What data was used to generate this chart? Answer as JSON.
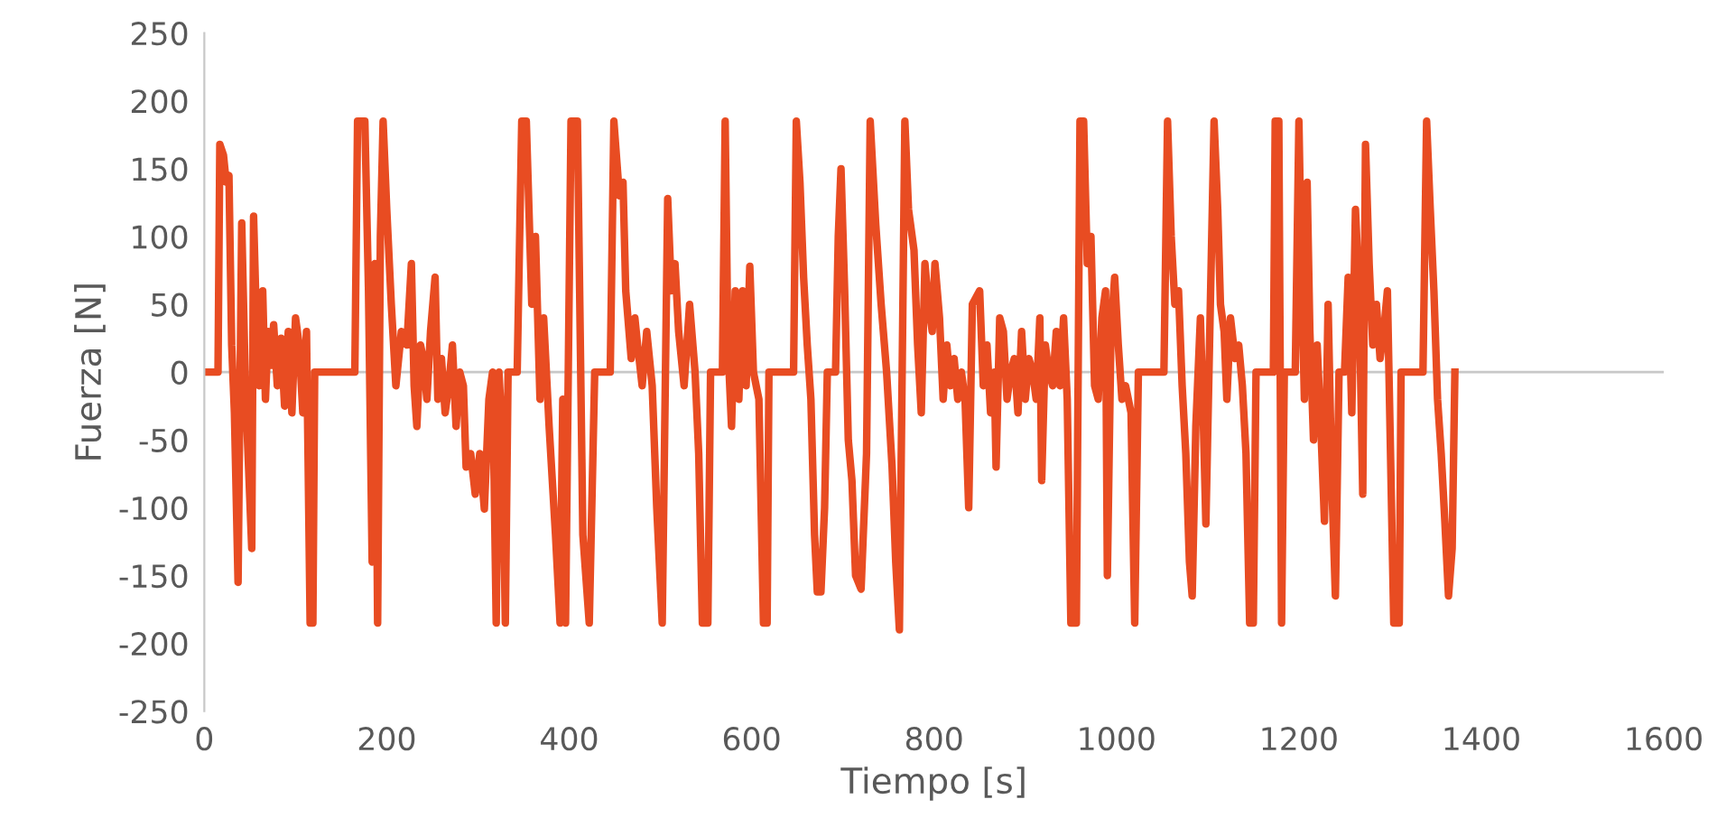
{
  "chart_data": {
    "type": "line",
    "xlabel": "Tiempo [s]",
    "ylabel": "Fuerza [N]",
    "xlim": [
      0,
      1600
    ],
    "xticks": [
      0,
      200,
      400,
      600,
      800,
      1000,
      1200,
      1400,
      1600
    ],
    "ylim": [
      -250,
      250
    ],
    "yticks": [
      -250,
      -200,
      -150,
      -100,
      -50,
      0,
      50,
      100,
      150,
      200,
      250
    ],
    "grid": false,
    "legend": false,
    "ref_lines": [
      {
        "axis": "y",
        "value": 0,
        "color": "#c8c8c8"
      }
    ],
    "marker": "none",
    "line_style": "solid",
    "series": [
      {
        "color": "#e84c22",
        "x": [
          0,
          15,
          17,
          21,
          24,
          27,
          30,
          33,
          37,
          41,
          45,
          52,
          54,
          57,
          60,
          63,
          64,
          67,
          70,
          73,
          76,
          80,
          84,
          88,
          92,
          96,
          100,
          104,
          108,
          112,
          116,
          119,
          121,
          165,
          168,
          174,
          176,
          180,
          184,
          187,
          190,
          193,
          196,
          200,
          205,
          210,
          216,
          222,
          227,
          230,
          233,
          237,
          240,
          244,
          248,
          253,
          256,
          260,
          264,
          268,
          272,
          276,
          280,
          284,
          287,
          292,
          297,
          302,
          307,
          312,
          316,
          320,
          323,
          327,
          330,
          333,
          343,
          348,
          353,
          359,
          363,
          368,
          372,
          378,
          385,
          390,
          393,
          396,
          399,
          402,
          409,
          415,
          422,
          428,
          445,
          449,
          455,
          459,
          462,
          468,
          472,
          475,
          480,
          485,
          491,
          496,
          502,
          508,
          512,
          516,
          520,
          526,
          532,
          538,
          542,
          546,
          552,
          555,
          568,
          571,
          574,
          578,
          582,
          586,
          590,
          594,
          598,
          602,
          608,
          613,
          617,
          619,
          646,
          649,
          653,
          657,
          661,
          665,
          669,
          672,
          676,
          680,
          683,
          692,
          695,
          698,
          702,
          706,
          710,
          714,
          720,
          726,
          730,
          736,
          742,
          748,
          754,
          758,
          762,
          768,
          772,
          778,
          782,
          786,
          790,
          794,
          798,
          801,
          806,
          810,
          814,
          818,
          822,
          826,
          830,
          834,
          838,
          842,
          846,
          850,
          854,
          858,
          862,
          866,
          868,
          872,
          876,
          880,
          884,
          888,
          892,
          896,
          900,
          904,
          908,
          912,
          916,
          918,
          922,
          926,
          930,
          934,
          938,
          942,
          946,
          950,
          956,
          960,
          964,
          968,
          972,
          976,
          980,
          984,
          988,
          990,
          994,
          998,
          1002,
          1006,
          1010,
          1016,
          1020,
          1024,
          1052,
          1056,
          1060,
          1064,
          1068,
          1072,
          1076,
          1080,
          1083,
          1087,
          1092,
          1095,
          1098,
          1102,
          1107,
          1111,
          1114,
          1118,
          1121,
          1125,
          1130,
          1134,
          1138,
          1142,
          1146,
          1150,
          1153,
          1172,
          1174,
          1178,
          1181,
          1184,
          1196,
          1200,
          1203,
          1206,
          1209,
          1212,
          1216,
          1220,
          1224,
          1228,
          1232,
          1236,
          1240,
          1244,
          1250,
          1254,
          1258,
          1262,
          1266,
          1270,
          1273,
          1277,
          1281,
          1285,
          1289,
          1293,
          1297,
          1301,
          1304,
          1310,
          1312,
          1336,
          1340,
          1344,
          1348,
          1352,
          1356,
          1360,
          1364,
          1368,
          1371
        ],
        "values": [
          0,
          0,
          168,
          160,
          140,
          145,
          20,
          -30,
          -155,
          110,
          -10,
          -130,
          115,
          40,
          -10,
          20,
          60,
          -20,
          30,
          5,
          35,
          -10,
          25,
          -25,
          30,
          -30,
          40,
          20,
          -30,
          30,
          -185,
          -185,
          0,
          0,
          185,
          185,
          185,
          60,
          -140,
          80,
          -185,
          100,
          185,
          120,
          50,
          -10,
          30,
          20,
          80,
          -10,
          -40,
          20,
          10,
          -20,
          30,
          70,
          -20,
          10,
          -30,
          -10,
          20,
          -40,
          0,
          -10,
          -70,
          -60,
          -90,
          -60,
          -101,
          -20,
          0,
          -185,
          0,
          -50,
          -185,
          0,
          0,
          185,
          185,
          50,
          100,
          -20,
          40,
          -40,
          -120,
          -185,
          -20,
          -185,
          0,
          185,
          185,
          -120,
          -185,
          0,
          0,
          185,
          130,
          140,
          60,
          10,
          40,
          20,
          -10,
          30,
          -10,
          -100,
          -185,
          128,
          60,
          80,
          30,
          -10,
          50,
          0,
          -60,
          -185,
          -185,
          0,
          0,
          185,
          20,
          -40,
          60,
          -20,
          60,
          -10,
          78,
          0,
          -20,
          -185,
          -185,
          0,
          0,
          185,
          140,
          70,
          20,
          -20,
          -120,
          -162,
          -162,
          -100,
          0,
          0,
          100,
          150,
          60,
          -50,
          -80,
          -150,
          -160,
          -60,
          185,
          110,
          50,
          0,
          -70,
          -140,
          -190,
          185,
          120,
          90,
          20,
          -30,
          80,
          50,
          30,
          80,
          40,
          -20,
          20,
          -10,
          10,
          -20,
          0,
          -20,
          -100,
          50,
          55,
          60,
          -10,
          20,
          -30,
          0,
          -70,
          40,
          30,
          -20,
          0,
          10,
          -30,
          30,
          -20,
          10,
          0,
          -20,
          40,
          -80,
          20,
          0,
          -10,
          30,
          -10,
          40,
          -20,
          -185,
          -185,
          185,
          185,
          80,
          100,
          -10,
          -20,
          40,
          60,
          -150,
          30,
          70,
          20,
          -20,
          -10,
          -30,
          -185,
          0,
          0,
          185,
          100,
          50,
          60,
          -10,
          -60,
          -140,
          -165,
          -40,
          40,
          -30,
          -112,
          20,
          185,
          120,
          50,
          30,
          -20,
          40,
          10,
          20,
          -10,
          -60,
          -185,
          -185,
          0,
          0,
          185,
          185,
          -185,
          0,
          0,
          185,
          70,
          -20,
          140,
          30,
          -50,
          20,
          -40,
          -110,
          50,
          -80,
          -165,
          0,
          0,
          70,
          -30,
          120,
          60,
          -90,
          168,
          80,
          20,
          50,
          10,
          30,
          60,
          -80,
          -185,
          -185,
          0,
          0,
          185,
          120,
          60,
          -20,
          -60,
          -110,
          -165,
          -130,
          0
        ]
      }
    ]
  }
}
